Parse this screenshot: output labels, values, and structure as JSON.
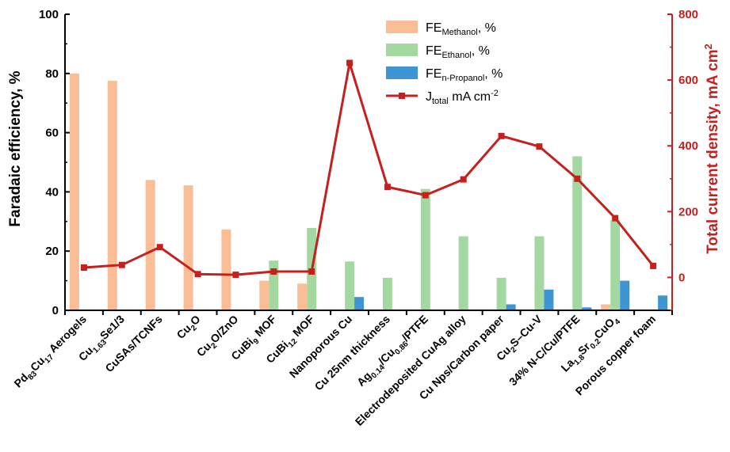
{
  "chart_data": {
    "type": "bar",
    "categories": [
      "Pd83Cu17 Aerogels",
      "Cu1.63Se1/3",
      "CuSAs/TCNFs",
      "Cu2O",
      "Cu2O/ZnO",
      "CuBi9 MOF",
      "CuBi12 MOF",
      "Nanoporous Cu",
      "Cu 25nm thickness",
      "Ag0.14/Cu0.86/PTFE",
      "Electrodeposited CuAg alloy",
      "Cu Nps/Carbon paper",
      "Cu2S–Cu-V",
      "34% N-C/Cu/PTFE",
      "La1.8Sr0.2CuO4",
      "Porous copper foam"
    ],
    "series": [
      {
        "name": "FE_Methanol, %",
        "type": "bar",
        "axis": "left",
        "color": "#f9be96",
        "values": [
          80,
          77.5,
          44,
          42.2,
          27.3,
          10,
          9,
          null,
          null,
          null,
          null,
          null,
          null,
          null,
          2,
          null
        ]
      },
      {
        "name": "FE_Ethanol, %",
        "type": "bar",
        "axis": "left",
        "color": "#a3d9a1",
        "values": [
          null,
          null,
          null,
          null,
          null,
          16.8,
          27.8,
          16.5,
          11,
          41,
          25,
          11,
          25,
          52,
          30.5,
          null
        ]
      },
      {
        "name": "FE_n-Propanol, %",
        "type": "bar",
        "axis": "left",
        "color": "#3d95d4",
        "values": [
          null,
          null,
          null,
          null,
          null,
          null,
          null,
          4.5,
          null,
          null,
          null,
          2,
          7,
          1,
          10,
          5
        ]
      },
      {
        "name": "J_total mA cm^-2",
        "type": "line",
        "axis": "right",
        "color": "#c71e1e",
        "values": [
          30,
          38,
          92,
          10,
          8,
          18,
          18,
          652,
          275,
          250,
          298,
          430,
          398,
          300,
          180,
          35
        ]
      }
    ],
    "ylabel_left": "Faradaic efficiency, %",
    "ylabel_right": "Total current density, mA cm",
    "ylim_left": [
      0,
      100
    ],
    "ylim_right": [
      -100,
      800
    ],
    "yticks_left": [
      "0",
      "20",
      "40",
      "60",
      "80",
      "100"
    ],
    "yticks_right": [
      "0",
      "200",
      "400",
      "600",
      "800"
    ],
    "legend": [
      {
        "base": "FE",
        "sub": "Methanol",
        "tail": ", %"
      },
      {
        "base": "FE",
        "sub": "Ethanol",
        "tail": ", %"
      },
      {
        "base": "FE",
        "sub": "n-Propanol",
        "tail": ", %"
      },
      {
        "base": "J",
        "sub": "total",
        "tail": " mA cm",
        "sup": "-2"
      }
    ],
    "legend_position": "top-center",
    "grid": false,
    "colors": {
      "axis": "#000000",
      "right_axis": "#c71e1e"
    }
  },
  "category_labels": [
    [
      [
        "Pd",
        ""
      ],
      [
        "83",
        "sub"
      ],
      [
        "Cu",
        ""
      ],
      [
        "17",
        "sub"
      ],
      [
        " Aerogels",
        ""
      ]
    ],
    [
      [
        "Cu",
        ""
      ],
      [
        "1.63",
        "sub"
      ],
      [
        "Se1/3",
        ""
      ]
    ],
    [
      [
        "CuSAs/TCNFs",
        ""
      ]
    ],
    [
      [
        "Cu",
        ""
      ],
      [
        "2",
        "sub"
      ],
      [
        "O",
        ""
      ]
    ],
    [
      [
        "Cu",
        ""
      ],
      [
        "2",
        "sub"
      ],
      [
        "O/ZnO",
        ""
      ]
    ],
    [
      [
        "CuBi",
        ""
      ],
      [
        "9",
        "sub"
      ],
      [
        " MOF",
        ""
      ]
    ],
    [
      [
        "CuBi",
        ""
      ],
      [
        "12",
        "sub"
      ],
      [
        " MOF",
        ""
      ]
    ],
    [
      [
        "Nanoporous Cu",
        ""
      ]
    ],
    [
      [
        "Cu 25nm thickness",
        ""
      ]
    ],
    [
      [
        "Ag",
        ""
      ],
      [
        "0.14",
        "sub"
      ],
      [
        "/Cu",
        ""
      ],
      [
        "0.86",
        "sub"
      ],
      [
        "/PTFE",
        ""
      ]
    ],
    [
      [
        "Electrodeposited CuAg alloy",
        ""
      ]
    ],
    [
      [
        "Cu Nps/Carbon paper",
        ""
      ]
    ],
    [
      [
        "Cu",
        ""
      ],
      [
        "2",
        "sub"
      ],
      [
        "S–Cu-V",
        ""
      ]
    ],
    [
      [
        "34% N-C/Cu/PTFE",
        ""
      ]
    ],
    [
      [
        "La",
        ""
      ],
      [
        "1.8",
        "sub"
      ],
      [
        "Sr",
        ""
      ],
      [
        "0.2",
        "sub"
      ],
      [
        "CuO",
        ""
      ],
      [
        "4",
        "sub"
      ]
    ],
    [
      [
        "Porous copper foam",
        ""
      ]
    ]
  ]
}
